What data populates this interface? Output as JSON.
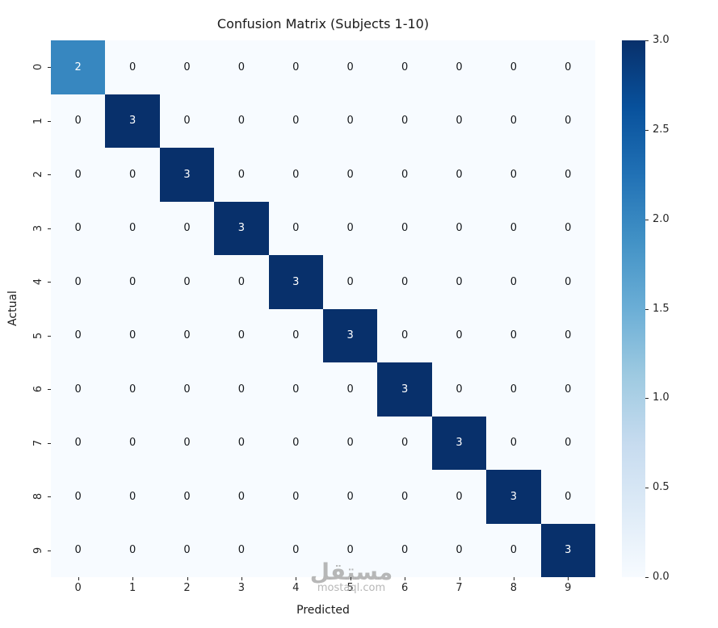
{
  "figure": {
    "watermark": {
      "arabic": "مستقل",
      "latin": "mostaql.com"
    }
  },
  "chart_data": {
    "type": "heatmap",
    "title": "Confusion Matrix (Subjects 1-10)",
    "xlabel": "Predicted",
    "ylabel": "Actual",
    "x_ticks": [
      "0",
      "1",
      "2",
      "3",
      "4",
      "5",
      "6",
      "7",
      "8",
      "9"
    ],
    "y_ticks": [
      "0",
      "1",
      "2",
      "3",
      "4",
      "5",
      "6",
      "7",
      "8",
      "9"
    ],
    "matrix": [
      [
        2,
        0,
        0,
        0,
        0,
        0,
        0,
        0,
        0,
        0
      ],
      [
        0,
        3,
        0,
        0,
        0,
        0,
        0,
        0,
        0,
        0
      ],
      [
        0,
        0,
        3,
        0,
        0,
        0,
        0,
        0,
        0,
        0
      ],
      [
        0,
        0,
        0,
        3,
        0,
        0,
        0,
        0,
        0,
        0
      ],
      [
        0,
        0,
        0,
        0,
        3,
        0,
        0,
        0,
        0,
        0
      ],
      [
        0,
        0,
        0,
        0,
        0,
        3,
        0,
        0,
        0,
        0
      ],
      [
        0,
        0,
        0,
        0,
        0,
        0,
        3,
        0,
        0,
        0
      ],
      [
        0,
        0,
        0,
        0,
        0,
        0,
        0,
        3,
        0,
        0
      ],
      [
        0,
        0,
        0,
        0,
        0,
        0,
        0,
        0,
        3,
        0
      ],
      [
        0,
        0,
        0,
        0,
        0,
        0,
        0,
        0,
        0,
        3
      ]
    ],
    "vmin": 0,
    "vmax": 3,
    "colormap": "Blues",
    "colormap_stops": [
      [
        0.0,
        "#f7fbff"
      ],
      [
        0.125,
        "#deebf7"
      ],
      [
        0.25,
        "#c6dbef"
      ],
      [
        0.375,
        "#9ecae1"
      ],
      [
        0.5,
        "#6baed6"
      ],
      [
        0.625,
        "#4292c6"
      ],
      [
        0.75,
        "#2171b5"
      ],
      [
        0.875,
        "#08519c"
      ],
      [
        1.0,
        "#08306b"
      ]
    ],
    "colorbar_ticks": [
      0.0,
      0.5,
      1.0,
      1.5,
      2.0,
      2.5,
      3.0
    ],
    "legend_position": "right-colorbar",
    "grid": false,
    "cell_text_color_light": "#ffffff",
    "cell_text_color_dark": "#15181c"
  }
}
